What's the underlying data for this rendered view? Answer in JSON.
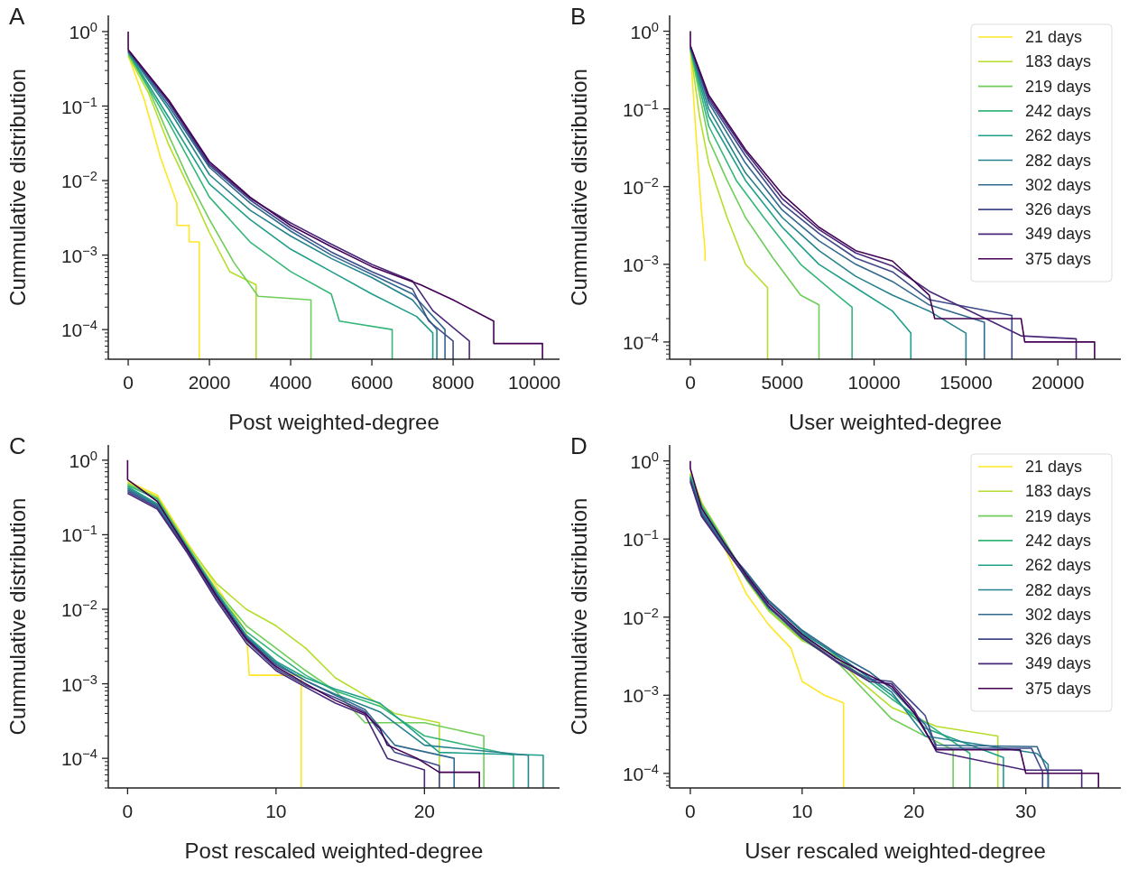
{
  "chart_data": [
    {
      "type": "line",
      "title": "A",
      "xlabel": "Post weighted-degree",
      "ylabel": "Cummulative distribution",
      "log": "y",
      "legend": false,
      "xlim": [
        -490,
        10620
      ],
      "xticks": [
        0,
        2000,
        4000,
        6000,
        8000,
        10000
      ],
      "ylim": [
        4e-05,
        1.65
      ],
      "yticks": [
        {
          "value": 1,
          "label": "10$^{0}$"
        },
        {
          "value": 0.1,
          "label": "10$^{−1}$"
        },
        {
          "value": 0.01,
          "label": "10$^{−2}$"
        },
        {
          "value": 0.001,
          "label": "10$^{−3}$"
        },
        {
          "value": 0.0001,
          "label": "10$^{−4}$"
        }
      ],
      "series": [
        {
          "color": "#fde725",
          "x": [
            0,
            400,
            800,
            1200,
            1200,
            1500,
            1500,
            1750,
            1750
          ],
          "values": [
            0.48,
            0.12,
            0.02,
            0.005,
            0.0025,
            0.0025,
            0.0015,
            0.0015,
            4e-05
          ]
        },
        {
          "color": "#b5de2b",
          "x": [
            0,
            500,
            1000,
            1500,
            2000,
            2500,
            3150,
            3150
          ],
          "values": [
            0.47,
            0.15,
            0.03,
            0.008,
            0.002,
            0.0006,
            0.0004,
            4e-05
          ]
        },
        {
          "color": "#6ece58",
          "x": [
            0,
            500,
            1000,
            1500,
            2000,
            2600,
            3200,
            4500,
            4500
          ],
          "values": [
            0.5,
            0.17,
            0.04,
            0.01,
            0.003,
            0.0008,
            0.00028,
            0.00025,
            4e-05
          ]
        },
        {
          "color": "#35b779",
          "x": [
            0,
            1000,
            2000,
            3000,
            4000,
            5000,
            5200,
            6500,
            6500
          ],
          "values": [
            0.52,
            0.06,
            0.006,
            0.0015,
            0.0006,
            0.0003,
            0.00013,
            0.0001,
            4e-05
          ]
        },
        {
          "color": "#1f9e89",
          "x": [
            0,
            1000,
            2000,
            3000,
            4000,
            5000,
            6000,
            7100,
            7500,
            7500
          ],
          "values": [
            0.53,
            0.07,
            0.009,
            0.003,
            0.0012,
            0.0006,
            0.0003,
            0.00015,
            9e-05,
            4e-05
          ]
        },
        {
          "color": "#26828e",
          "x": [
            0,
            1000,
            2000,
            3000,
            4000,
            5000,
            6000,
            7000,
            7600,
            7600
          ],
          "values": [
            0.54,
            0.09,
            0.012,
            0.004,
            0.0018,
            0.0009,
            0.0005,
            0.00025,
            0.0001,
            4e-05
          ]
        },
        {
          "color": "#31688e",
          "x": [
            0,
            1000,
            2000,
            3000,
            4000,
            5000,
            6000,
            7000,
            7800,
            7800
          ],
          "values": [
            0.55,
            0.1,
            0.015,
            0.005,
            0.0021,
            0.001,
            0.00055,
            0.0003,
            0.0001,
            4e-05
          ]
        },
        {
          "color": "#3e4989",
          "x": [
            0,
            1000,
            2000,
            3000,
            4000,
            5000,
            6000,
            7000,
            7400,
            8000,
            8000
          ],
          "values": [
            0.55,
            0.11,
            0.016,
            0.0055,
            0.0023,
            0.0011,
            0.0006,
            0.00035,
            0.00013,
            7e-05,
            4e-05
          ]
        },
        {
          "color": "#482878",
          "x": [
            0,
            1000,
            2000,
            3000,
            4000,
            5000,
            6000,
            7000,
            7500,
            8400,
            8400
          ],
          "values": [
            0.56,
            0.115,
            0.017,
            0.0058,
            0.0027,
            0.0014,
            0.00075,
            0.00045,
            0.00018,
            7e-05,
            4e-05
          ]
        },
        {
          "color": "#440154",
          "x": [
            0,
            0,
            1000,
            2000,
            3000,
            4000,
            5000,
            6000,
            7200,
            8000,
            9000,
            9000,
            10200,
            10200
          ],
          "values": [
            1,
            0.57,
            0.12,
            0.018,
            0.006,
            0.0025,
            0.0013,
            0.0007,
            0.0004,
            0.00025,
            0.00013,
            6.5e-05,
            6.5e-05,
            4e-05
          ]
        }
      ]
    },
    {
      "type": "line",
      "title": "B",
      "xlabel": "User weighted-degree",
      "ylabel": "Cummulative distribution",
      "log": "y",
      "legend": "top right",
      "xlim": [
        -1130,
        23430
      ],
      "xticks": [
        0,
        5000,
        10000,
        15000,
        20000
      ],
      "ylim": [
        6e-05,
        1.6
      ],
      "yticks": [
        {
          "value": 1,
          "label": "10$^{0}$"
        },
        {
          "value": 0.1,
          "label": "10$^{−1}$"
        },
        {
          "value": 0.01,
          "label": "10$^{−2}$"
        },
        {
          "value": 0.001,
          "label": "10$^{−3}$"
        },
        {
          "value": 0.0001,
          "label": "10$^{−4}$"
        }
      ],
      "series": [
        {
          "name": "21 days",
          "color": "#fde725",
          "x": [
            0,
            300,
            600,
            800,
            800
          ],
          "values": [
            0.55,
            0.05,
            0.005,
            0.0015,
            0.0011
          ]
        },
        {
          "name": "183 days",
          "color": "#b5de2b",
          "x": [
            0,
            500,
            1000,
            2000,
            3000,
            4200,
            4200
          ],
          "values": [
            0.57,
            0.08,
            0.02,
            0.004,
            0.001,
            0.0005,
            6e-05
          ]
        },
        {
          "name": "219 days",
          "color": "#6ece58",
          "x": [
            0,
            1000,
            2000,
            3000,
            4500,
            6000,
            7000,
            7000
          ],
          "values": [
            0.58,
            0.04,
            0.012,
            0.004,
            0.0012,
            0.0004,
            0.0003,
            6e-05
          ]
        },
        {
          "name": "242 days",
          "color": "#35b779",
          "x": [
            0,
            1000,
            2500,
            4000,
            6000,
            8000,
            8800,
            8800
          ],
          "values": [
            0.59,
            0.06,
            0.012,
            0.004,
            0.001,
            0.0004,
            0.00028,
            6e-05
          ]
        },
        {
          "name": "262 days",
          "color": "#1f9e89",
          "x": [
            0,
            1000,
            3000,
            5000,
            7000,
            9000,
            11000,
            12000,
            12000
          ],
          "values": [
            0.6,
            0.08,
            0.012,
            0.003,
            0.001,
            0.0005,
            0.00025,
            0.00013,
            6e-05
          ]
        },
        {
          "name": "282 days",
          "color": "#26828e",
          "x": [
            0,
            1000,
            3000,
            5000,
            7000,
            9000,
            11000,
            13000,
            15000,
            15000
          ],
          "values": [
            0.61,
            0.1,
            0.015,
            0.004,
            0.0015,
            0.0007,
            0.0004,
            0.00025,
            0.00013,
            6e-05
          ]
        },
        {
          "name": "302 days",
          "color": "#31688e",
          "x": [
            0,
            1000,
            3000,
            5000,
            7000,
            9000,
            11000,
            13000,
            16000,
            16000
          ],
          "values": [
            0.62,
            0.12,
            0.02,
            0.005,
            0.002,
            0.001,
            0.0006,
            0.0003,
            0.00018,
            6e-05
          ]
        },
        {
          "name": "326 days",
          "color": "#3e4989",
          "x": [
            0,
            1000,
            3000,
            5000,
            7000,
            9000,
            11000,
            13000,
            17500,
            17500
          ],
          "values": [
            0.63,
            0.13,
            0.025,
            0.006,
            0.0025,
            0.0012,
            0.0008,
            0.00035,
            0.00022,
            6e-05
          ]
        },
        {
          "name": "349 days",
          "color": "#482878",
          "x": [
            0,
            1000,
            3000,
            5000,
            7000,
            9000,
            11000,
            13000,
            18000,
            21000,
            21000
          ],
          "values": [
            0.64,
            0.14,
            0.028,
            0.007,
            0.0028,
            0.0014,
            0.00095,
            0.00045,
            0.00012,
            0.00011,
            6e-05
          ]
        },
        {
          "name": "375 days",
          "color": "#440154",
          "x": [
            0,
            0,
            1000,
            3000,
            5000,
            7000,
            9000,
            11000,
            13000,
            13300,
            18000,
            18200,
            22000,
            22000
          ],
          "values": [
            1,
            0.65,
            0.15,
            0.03,
            0.008,
            0.003,
            0.0015,
            0.0011,
            0.0004,
            0.0002,
            0.0002,
            0.0001,
            0.0001,
            6e-05
          ]
        }
      ]
    },
    {
      "type": "line",
      "title": "C",
      "xlabel": "Post rescaled weighted-degree",
      "ylabel": "Cummulative distribution",
      "log": "y",
      "legend": false,
      "xlim": [
        -1.3,
        29.1
      ],
      "xticks": [
        0,
        10,
        20
      ],
      "ylim": [
        4e-05,
        1.6
      ],
      "yticks": [
        {
          "value": 1,
          "label": "10$^{0}$"
        },
        {
          "value": 0.1,
          "label": "10$^{−1}$"
        },
        {
          "value": 0.01,
          "label": "10$^{−2}$"
        },
        {
          "value": 0.001,
          "label": "10$^{−3}$"
        },
        {
          "value": 0.0001,
          "label": "10$^{−4}$"
        }
      ],
      "series": [
        {
          "color": "#fde725",
          "x": [
            0,
            2,
            4,
            6,
            8,
            8.2,
            11.7,
            11.7
          ],
          "values": [
            0.52,
            0.34,
            0.08,
            0.02,
            0.005,
            0.0013,
            0.0013,
            4e-05
          ]
        },
        {
          "color": "#b5de2b",
          "x": [
            0,
            2,
            4,
            6,
            8,
            10,
            12,
            14,
            16,
            18,
            21,
            21
          ],
          "values": [
            0.5,
            0.32,
            0.075,
            0.022,
            0.01,
            0.006,
            0.003,
            0.0012,
            0.0007,
            0.0004,
            0.0003,
            4e-05
          ]
        },
        {
          "color": "#6ece58",
          "x": [
            0,
            2,
            4,
            6,
            8,
            10,
            12,
            14,
            16,
            20,
            24,
            24
          ],
          "values": [
            0.48,
            0.31,
            0.072,
            0.018,
            0.006,
            0.003,
            0.0015,
            0.0008,
            0.0003,
            0.0003,
            0.0002,
            4e-05
          ]
        },
        {
          "color": "#35b779",
          "x": [
            0,
            2,
            4,
            6,
            8,
            10,
            12,
            14,
            17,
            20,
            26,
            26
          ],
          "values": [
            0.46,
            0.3,
            0.07,
            0.017,
            0.005,
            0.0025,
            0.0013,
            0.0008,
            0.0005,
            0.0002,
            0.00011,
            4e-05
          ]
        },
        {
          "color": "#1f9e89",
          "x": [
            0,
            2,
            4,
            6,
            8,
            10,
            12,
            14,
            17,
            21,
            28,
            28
          ],
          "values": [
            0.44,
            0.26,
            0.068,
            0.016,
            0.0045,
            0.002,
            0.0012,
            0.00085,
            0.00055,
            0.00012,
            0.00011,
            4e-05
          ]
        },
        {
          "color": "#26828e",
          "x": [
            0,
            2,
            4,
            6,
            8,
            10,
            12,
            14,
            17,
            20,
            27,
            27
          ],
          "values": [
            0.42,
            0.25,
            0.066,
            0.0165,
            0.0043,
            0.0019,
            0.0011,
            0.00072,
            0.00042,
            0.00015,
            0.00011,
            4e-05
          ]
        },
        {
          "color": "#31688e",
          "x": [
            0,
            2,
            4,
            6,
            8,
            10,
            12,
            14,
            16,
            18,
            22,
            22
          ],
          "values": [
            0.4,
            0.24,
            0.063,
            0.0155,
            0.0042,
            0.0018,
            0.0011,
            0.0007,
            0.00045,
            0.00015,
            0.0001,
            4e-05
          ]
        },
        {
          "color": "#3e4989",
          "x": [
            0,
            2,
            4,
            6,
            8,
            10,
            12,
            14,
            16,
            18,
            21,
            21
          ],
          "values": [
            0.38,
            0.23,
            0.061,
            0.014,
            0.0038,
            0.0016,
            0.00095,
            0.00065,
            0.00042,
            0.00012,
            8e-05,
            4e-05
          ]
        },
        {
          "color": "#482878",
          "x": [
            0,
            2,
            4,
            6,
            8,
            10,
            12,
            14,
            16,
            17.5,
            20,
            20
          ],
          "values": [
            0.36,
            0.22,
            0.058,
            0.013,
            0.0035,
            0.0015,
            0.0009,
            0.00055,
            0.00038,
            0.0001,
            7e-05,
            4e-05
          ]
        },
        {
          "color": "#440154",
          "x": [
            0,
            0,
            2,
            4,
            6,
            8,
            10,
            12,
            14,
            16,
            17,
            17.5,
            19.5,
            21,
            23.7,
            23.7
          ],
          "values": [
            1,
            0.55,
            0.28,
            0.065,
            0.015,
            0.004,
            0.0017,
            0.001,
            0.0006,
            0.0004,
            0.00025,
            0.00015,
            0.0001,
            6.5e-05,
            6.5e-05,
            4e-05
          ]
        }
      ]
    },
    {
      "type": "line",
      "title": "D",
      "xlabel": "User rescaled weighted-degree",
      "ylabel": "Cummulative distribution",
      "log": "y",
      "legend": "top right",
      "xlim": [
        -1.85,
        38.5
      ],
      "xticks": [
        0,
        10,
        20,
        30
      ],
      "ylim": [
        6.5e-05,
        1.6
      ],
      "yticks": [
        {
          "value": 1,
          "label": "10$^{0}$"
        },
        {
          "value": 0.1,
          "label": "10$^{−1}$"
        },
        {
          "value": 0.01,
          "label": "10$^{−2}$"
        },
        {
          "value": 0.001,
          "label": "10$^{−3}$"
        },
        {
          "value": 0.0001,
          "label": "10$^{−4}$"
        }
      ],
      "series": [
        {
          "name": "21 days",
          "color": "#fde725",
          "x": [
            0,
            1,
            3,
            5,
            7,
            9,
            10,
            12,
            13.7,
            13.7
          ],
          "values": [
            0.7,
            0.3,
            0.08,
            0.02,
            0.008,
            0.004,
            0.0015,
            0.001,
            0.0008,
            6.5e-05
          ]
        },
        {
          "name": "183 days",
          "color": "#b5de2b",
          "x": [
            0,
            1,
            3,
            5,
            7,
            10,
            13,
            15,
            18,
            22,
            27.5,
            27.5
          ],
          "values": [
            0.68,
            0.29,
            0.1,
            0.03,
            0.012,
            0.005,
            0.0032,
            0.0016,
            0.0007,
            0.0004,
            0.0003,
            6.5e-05
          ]
        },
        {
          "name": "219 days",
          "color": "#6ece58",
          "x": [
            0,
            1,
            3,
            5,
            7,
            10,
            13,
            15,
            18,
            21,
            23.5,
            23.5
          ],
          "values": [
            0.66,
            0.28,
            0.097,
            0.033,
            0.0125,
            0.0052,
            0.0028,
            0.0014,
            0.0005,
            0.0003,
            0.0002,
            6.5e-05
          ]
        },
        {
          "name": "242 days",
          "color": "#35b779",
          "x": [
            0,
            1,
            3,
            5,
            7,
            10,
            13,
            16,
            18,
            21,
            25,
            25
          ],
          "values": [
            0.64,
            0.27,
            0.094,
            0.034,
            0.0135,
            0.0058,
            0.0031,
            0.0015,
            0.0009,
            0.00045,
            0.00018,
            6.5e-05
          ]
        },
        {
          "name": "262 days",
          "color": "#1f9e89",
          "x": [
            0,
            1,
            3,
            5,
            7,
            10,
            13,
            16,
            18,
            21,
            28,
            28
          ],
          "values": [
            0.62,
            0.235,
            0.086,
            0.031,
            0.013,
            0.0062,
            0.0034,
            0.00165,
            0.001,
            0.00038,
            0.00016,
            6.5e-05
          ]
        },
        {
          "name": "282 days",
          "color": "#26828e",
          "x": [
            0,
            1,
            3,
            5,
            7,
            10,
            13,
            16,
            18,
            21,
            31,
            32,
            32
          ],
          "values": [
            0.6,
            0.225,
            0.084,
            0.0365,
            0.016,
            0.0065,
            0.0033,
            0.0017,
            0.0011,
            0.0003,
            0.00018,
            0.00013,
            6.5e-05
          ]
        },
        {
          "name": "302 days",
          "color": "#31688e",
          "x": [
            0,
            1,
            3,
            5,
            7,
            10,
            13,
            16,
            18,
            21,
            22,
            31,
            32,
            32
          ],
          "values": [
            0.58,
            0.215,
            0.082,
            0.038,
            0.0165,
            0.0068,
            0.0035,
            0.002,
            0.0012,
            0.00042,
            0.00023,
            0.00022,
            0.0001,
            6.5e-05
          ]
        },
        {
          "name": "326 days",
          "color": "#3e4989",
          "x": [
            0,
            1,
            3,
            5,
            7,
            10,
            13,
            16,
            18,
            21,
            22,
            30.5,
            31.5,
            31.5
          ],
          "values": [
            0.56,
            0.205,
            0.08,
            0.033,
            0.014,
            0.0056,
            0.0028,
            0.0016,
            0.0015,
            0.00055,
            0.00021,
            0.00021,
            0.000105,
            6.5e-05
          ]
        },
        {
          "name": "349 days",
          "color": "#482878",
          "x": [
            0,
            1,
            3,
            5,
            7,
            10,
            13,
            16,
            18,
            20,
            22,
            30,
            35,
            35
          ],
          "values": [
            0.54,
            0.195,
            0.078,
            0.032,
            0.0135,
            0.0054,
            0.0027,
            0.0015,
            0.0014,
            0.00065,
            0.00019,
            0.00011,
            0.00011,
            6.5e-05
          ]
        },
        {
          "name": "375 days",
          "color": "#440154",
          "x": [
            0,
            0,
            1,
            3,
            5,
            7,
            10,
            13,
            16,
            18,
            20,
            22,
            29.5,
            30,
            36.5,
            36.5
          ],
          "values": [
            1,
            0.8,
            0.25,
            0.09,
            0.035,
            0.015,
            0.006,
            0.003,
            0.0018,
            0.0013,
            0.0006,
            0.0002,
            0.0002,
            0.0001,
            0.0001,
            6.5e-05
          ]
        }
      ]
    }
  ]
}
